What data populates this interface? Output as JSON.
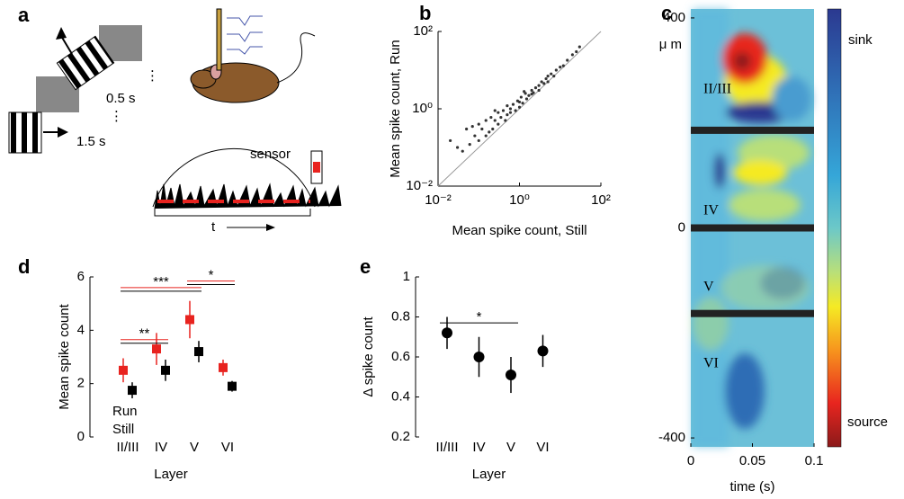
{
  "panel_labels": [
    "a",
    "b",
    "c",
    "d",
    "e"
  ],
  "illustration": {
    "interval_1": "0.5 s",
    "interval_2": "1.5 s",
    "sensor": "sensor",
    "time": "t"
  },
  "chart_data": [
    {
      "type": "scatter",
      "xlabel": "Mean spike count, Still",
      "ylabel": "Mean spike count, Run",
      "log": true,
      "color": "#333333",
      "x": [
        0.02,
        0.03,
        0.05,
        0.06,
        0.08,
        0.1,
        0.1,
        0.12,
        0.15,
        0.18,
        0.2,
        0.22,
        0.25,
        0.3,
        0.3,
        0.35,
        0.4,
        0.45,
        0.5,
        0.5,
        0.6,
        0.7,
        0.8,
        0.9,
        1,
        1,
        1.1,
        1.2,
        1.4,
        1.5,
        1.7,
        2,
        2,
        2.5,
        3,
        3,
        3.5,
        4,
        5,
        5,
        6,
        7,
        8,
        10,
        12,
        15,
        20,
        25,
        30,
        0.04,
        0.07,
        0.15,
        0.25,
        0.6,
        1.3,
        2.2,
        4.5
      ],
      "y": [
        0.15,
        0.1,
        0.3,
        0.12,
        0.2,
        0.4,
        0.15,
        0.3,
        0.5,
        0.25,
        0.6,
        0.3,
        0.5,
        0.8,
        0.4,
        0.6,
        0.9,
        0.5,
        1.2,
        0.7,
        1,
        1.3,
        0.9,
        1.6,
        1.5,
        1.1,
        2,
        1.4,
        2.5,
        1.8,
        2.2,
        3,
        2.4,
        3.5,
        4,
        3,
        5,
        4.5,
        7,
        5,
        8,
        7,
        10,
        12,
        13,
        18,
        25,
        30,
        40,
        0.08,
        0.35,
        0.2,
        0.9,
        0.8,
        2.8,
        2.6,
        6
      ],
      "xlim": [
        0.01,
        100
      ],
      "ylim": [
        0.01,
        100
      ],
      "xticks": [
        {
          "value": 0.01,
          "label": "10⁻²"
        },
        {
          "value": 1,
          "label": "10⁰"
        },
        {
          "value": 100,
          "label": "10²"
        }
      ],
      "yticks": [
        {
          "value": 0.01,
          "label": "10⁻²"
        },
        {
          "value": 1,
          "label": "10⁰"
        },
        {
          "value": 100,
          "label": "10²"
        }
      ]
    },
    {
      "type": "errorbar",
      "xlabel": "Layer",
      "ylabel": "Mean spike count",
      "marker": "square",
      "categories": [
        "II/III",
        "IV",
        "V",
        "VI"
      ],
      "series": [
        {
          "name": "Run",
          "color": "#e8231f",
          "values": [
            2.5,
            3.3,
            4.4,
            2.6
          ],
          "errors": [
            0.45,
            0.6,
            0.7,
            0.3
          ]
        },
        {
          "name": "Still",
          "color": "#000000",
          "values": [
            1.75,
            2.5,
            3.2,
            1.9
          ],
          "errors": [
            0.3,
            0.4,
            0.4,
            0.2
          ]
        }
      ],
      "ylim": [
        0,
        6
      ],
      "yticks": [
        0,
        2,
        4,
        6
      ],
      "annotations": [
        {
          "text": "***",
          "from": "II/III",
          "to": "V",
          "y": 5.6,
          "colors": [
            "#e8231f",
            "#000000"
          ]
        },
        {
          "text": "**",
          "from": "II/III",
          "to": "IV",
          "y": 3.65,
          "colors": [
            "#e8231f",
            "#000000"
          ]
        },
        {
          "text": "*",
          "from": "V",
          "to": "VI",
          "y": 5.85,
          "colors": [
            "#e8231f",
            "#000000"
          ]
        }
      ]
    },
    {
      "type": "errorbar",
      "xlabel": "Layer",
      "ylabel": "Δ spike count",
      "marker": "circle",
      "color": "#000000",
      "categories": [
        "II/III",
        "IV",
        "V",
        "VI"
      ],
      "values": [
        0.72,
        0.6,
        0.51,
        0.63
      ],
      "errors": [
        0.08,
        0.1,
        0.09,
        0.08
      ],
      "ylim": [
        0.2,
        1
      ],
      "yticks": [
        0.2,
        0.4,
        0.6,
        0.8,
        1
      ],
      "annotations": [
        {
          "text": "*",
          "from": "II/III",
          "to": "V",
          "y": 0.77,
          "colors": [
            "#000000"
          ]
        }
      ]
    },
    {
      "type": "heatmap",
      "xlabel": "time (s)",
      "ylabel": "μ m",
      "xlim": [
        0,
        0.1
      ],
      "xticks": [
        0,
        0.05,
        0.1
      ],
      "ylim": [
        -417,
        417
      ],
      "yticks": [
        400,
        0,
        -400
      ],
      "boundaries": [
        186,
        0,
        -163
      ],
      "layer_labels": [
        "II/III",
        "IV",
        "V",
        "VI"
      ],
      "colorbar_labels": [
        "sink",
        "source"
      ]
    }
  ]
}
